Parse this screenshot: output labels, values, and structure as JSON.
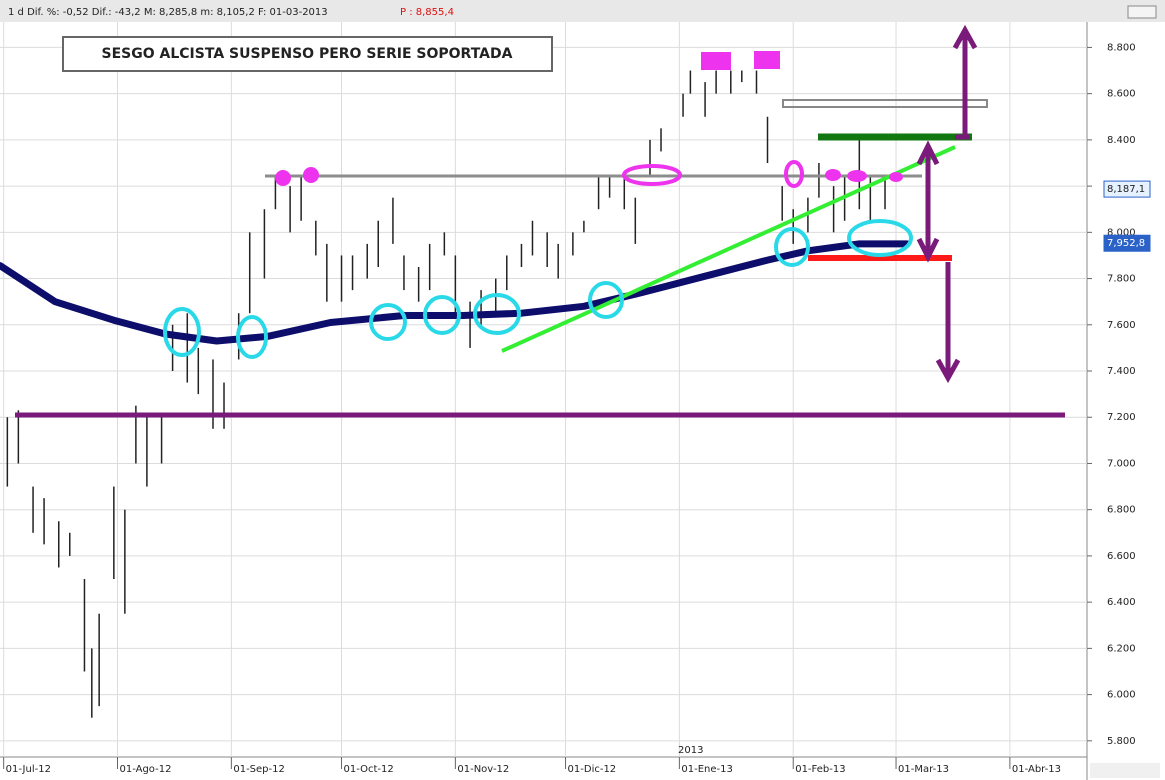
{
  "header": {
    "info": "1 d Dif. %: -0,52 Dif.: -43,2 M: 8,285,8 m: 8,105,2 F: 01-03-2013",
    "price": "P : 8,855,4"
  },
  "chart_data": {
    "type": "ohlc",
    "title": "SESGO ALCISTA SUSPENSO PERO SERIE SOPORTADA",
    "year_label": "2013",
    "bar_color": "#222222",
    "x": [
      "2012-07-02",
      "2012-07-05",
      "2012-07-09",
      "2012-07-12",
      "2012-07-16",
      "2012-07-19",
      "2012-07-23",
      "2012-07-25",
      "2012-07-27",
      "2012-07-31",
      "2012-08-03",
      "2012-08-06",
      "2012-08-09",
      "2012-08-13",
      "2012-08-16",
      "2012-08-20",
      "2012-08-23",
      "2012-08-27",
      "2012-08-30",
      "2012-09-03",
      "2012-09-06",
      "2012-09-10",
      "2012-09-13",
      "2012-09-17",
      "2012-09-20",
      "2012-09-24",
      "2012-09-27",
      "2012-10-01",
      "2012-10-04",
      "2012-10-08",
      "2012-10-11",
      "2012-10-15",
      "2012-10-18",
      "2012-10-22",
      "2012-10-25",
      "2012-10-29",
      "2012-11-01",
      "2012-11-05",
      "2012-11-08",
      "2012-11-12",
      "2012-11-15",
      "2012-11-19",
      "2012-11-22",
      "2012-11-26",
      "2012-11-29",
      "2012-12-03",
      "2012-12-06",
      "2012-12-10",
      "2012-12-13",
      "2012-12-17",
      "2012-12-20",
      "2012-12-24",
      "2012-12-27",
      "2013-01-02",
      "2013-01-04",
      "2013-01-08",
      "2013-01-11",
      "2013-01-15",
      "2013-01-18",
      "2013-01-22",
      "2013-01-25",
      "2013-01-29",
      "2013-02-01",
      "2013-02-05",
      "2013-02-08",
      "2013-02-12",
      "2013-02-15",
      "2013-02-19",
      "2013-02-22",
      "2013-02-26"
    ],
    "high": [
      7200,
      7230,
      6900,
      6850,
      6750,
      6700,
      6500,
      6200,
      6350,
      6900,
      6800,
      7250,
      7200,
      7200,
      7600,
      7650,
      7500,
      7450,
      7350,
      7650,
      8000,
      8100,
      8250,
      8200,
      8250,
      8050,
      7950,
      7900,
      7900,
      7950,
      8050,
      8150,
      7900,
      7850,
      7950,
      8000,
      7900,
      7700,
      7750,
      7800,
      7900,
      7950,
      8050,
      8000,
      7950,
      8000,
      8050,
      8250,
      8250,
      8250,
      8150,
      8400,
      8450,
      8600,
      8700,
      8650,
      8700,
      8700,
      8700,
      8700,
      8500,
      8200,
      8100,
      8150,
      8300,
      8200,
      8250,
      8400,
      8250,
      8250
    ],
    "low": [
      6900,
      7000,
      6700,
      6650,
      6550,
      6600,
      6100,
      5900,
      5950,
      6500,
      6350,
      7000,
      6900,
      7000,
      7400,
      7350,
      7300,
      7150,
      7150,
      7450,
      7650,
      7800,
      8100,
      8000,
      8050,
      7900,
      7700,
      7700,
      7750,
      7800,
      7850,
      7950,
      7750,
      7700,
      7750,
      7900,
      7650,
      7500,
      7600,
      7650,
      7750,
      7850,
      7900,
      7850,
      7800,
      7900,
      8000,
      8100,
      8150,
      8100,
      7950,
      8250,
      8350,
      8500,
      8600,
      8500,
      8600,
      8600,
      8650,
      8600,
      8300,
      8050,
      7950,
      8000,
      8150,
      8000,
      8050,
      8100,
      8050,
      8100
    ],
    "moving_average": {
      "color": "#0d0d6b",
      "x": [
        "2012-06-30",
        "2012-07-15",
        "2012-07-31",
        "2012-08-14",
        "2012-08-28",
        "2012-09-11",
        "2012-09-28",
        "2012-10-18",
        "2012-11-03",
        "2012-11-19",
        "2012-12-06",
        "2012-12-22",
        "2013-01-08",
        "2013-01-25",
        "2013-02-05",
        "2013-02-19",
        "2013-03-04"
      ],
      "values": [
        7856,
        7700,
        7620,
        7560,
        7530,
        7550,
        7610,
        7640,
        7640,
        7650,
        7680,
        7740,
        7810,
        7880,
        7920,
        7950,
        7950
      ]
    },
    "price_tags": [
      {
        "value": 8187.1,
        "label": "8,187,1"
      },
      {
        "value": 7952.8,
        "label": "7,952,8"
      }
    ],
    "ylim": [
      5730,
      8910
    ],
    "yticks": [
      {
        "value": 5800,
        "label": "5.800"
      },
      {
        "value": 6000,
        "label": "6.000"
      },
      {
        "value": 6200,
        "label": "6.200"
      },
      {
        "value": 6400,
        "label": "6.400"
      },
      {
        "value": 6600,
        "label": "6.600"
      },
      {
        "value": 6800,
        "label": "6.800"
      },
      {
        "value": 7000,
        "label": "7.000"
      },
      {
        "value": 7200,
        "label": "7.200"
      },
      {
        "value": 7400,
        "label": "7.400"
      },
      {
        "value": 7600,
        "label": "7.600"
      },
      {
        "value": 7800,
        "label": "7.800"
      },
      {
        "value": 8000,
        "label": "8.000"
      },
      {
        "value": 8200,
        "label": "8.200"
      },
      {
        "value": 8400,
        "label": "8.400"
      },
      {
        "value": 8600,
        "label": "8.600"
      },
      {
        "value": 8800,
        "label": "8.800"
      }
    ],
    "xlim": [
      "2012-06-30",
      "2013-04-22"
    ],
    "xticks": [
      {
        "value": "2012-07-01",
        "label": "01-Jul-12"
      },
      {
        "value": "2012-08-01",
        "label": "01-Ago-12"
      },
      {
        "value": "2012-09-01",
        "label": "01-Sep-12"
      },
      {
        "value": "2012-10-01",
        "label": "01-Oct-12"
      },
      {
        "value": "2012-11-01",
        "label": "01-Nov-12"
      },
      {
        "value": "2012-12-01",
        "label": "01-Dic-12"
      },
      {
        "value": "2013-01-01",
        "label": "01-Ene-13"
      },
      {
        "value": "2013-02-01",
        "label": "01-Feb-13"
      },
      {
        "value": "2013-03-01",
        "label": "01-Mar-13"
      },
      {
        "value": "2013-04-01",
        "label": "01-Abr-13"
      }
    ],
    "grid": true
  }
}
